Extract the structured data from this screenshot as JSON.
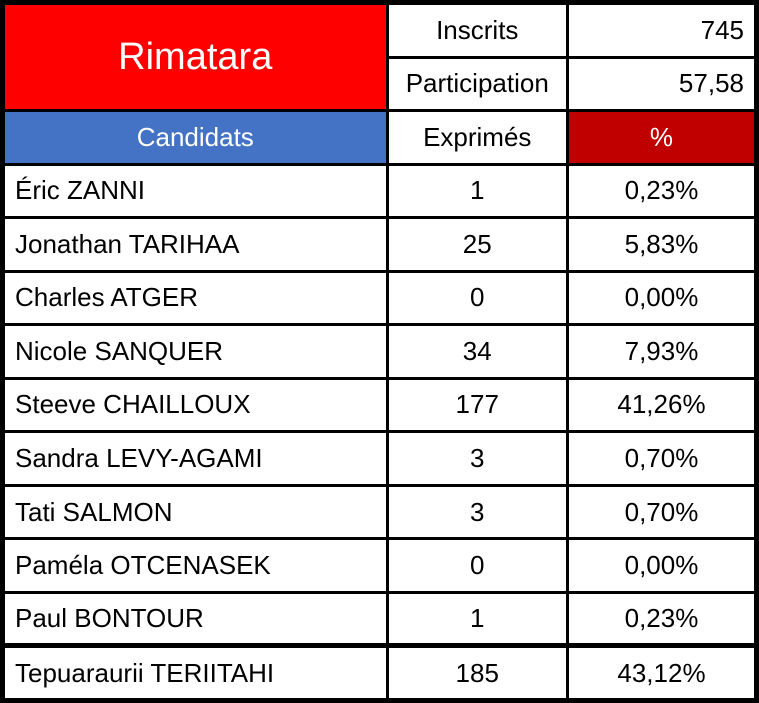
{
  "title": "Rimatara",
  "summary": {
    "inscrits_label": "Inscrits",
    "inscrits_value": "745",
    "participation_label": "Participation",
    "participation_value": "57,58"
  },
  "header": {
    "candidats": "Candidats",
    "exprimes": "Exprimés",
    "percent": "%"
  },
  "colors": {
    "red": "#ff0000",
    "blue": "#4472c4",
    "darkred": "#c00000"
  },
  "rows": [
    {
      "name": "Éric ZANNI",
      "votes": "1",
      "pct": "0,23%"
    },
    {
      "name": "Jonathan TARIHAA",
      "votes": "25",
      "pct": "5,83%"
    },
    {
      "name": "Charles ATGER",
      "votes": "0",
      "pct": "0,00%"
    },
    {
      "name": "Nicole SANQUER",
      "votes": "34",
      "pct": "7,93%"
    },
    {
      "name": "Steeve CHAILLOUX",
      "votes": "177",
      "pct": "41,26%"
    },
    {
      "name": "Sandra LEVY-AGAMI",
      "votes": "3",
      "pct": "0,70%"
    },
    {
      "name": "Tati SALMON",
      "votes": "3",
      "pct": "0,70%"
    },
    {
      "name": "Paméla OTCENASEK",
      "votes": "0",
      "pct": "0,00%"
    },
    {
      "name": "Paul BONTOUR",
      "votes": "1",
      "pct": "0,23%"
    },
    {
      "name": "Tepuaraurii TERIITAHI",
      "votes": "185",
      "pct": "43,12%"
    }
  ],
  "chart_data": {
    "type": "table",
    "title": "Rimatara",
    "inscrits": 745,
    "participation_pct": 57.58,
    "columns": [
      "Candidats",
      "Exprimés",
      "%"
    ],
    "rows": [
      [
        "Éric ZANNI",
        1,
        0.23
      ],
      [
        "Jonathan TARIHAA",
        25,
        5.83
      ],
      [
        "Charles ATGER",
        0,
        0.0
      ],
      [
        "Nicole SANQUER",
        34,
        7.93
      ],
      [
        "Steeve CHAILLOUX",
        177,
        41.26
      ],
      [
        "Sandra LEVY-AGAMI",
        3,
        0.7
      ],
      [
        "Tati SALMON",
        3,
        0.7
      ],
      [
        "Paméla OTCENASEK",
        0,
        0.0
      ],
      [
        "Paul BONTOUR",
        1,
        0.23
      ],
      [
        "Tepuaraurii TERIITAHI",
        185,
        43.12
      ]
    ]
  }
}
